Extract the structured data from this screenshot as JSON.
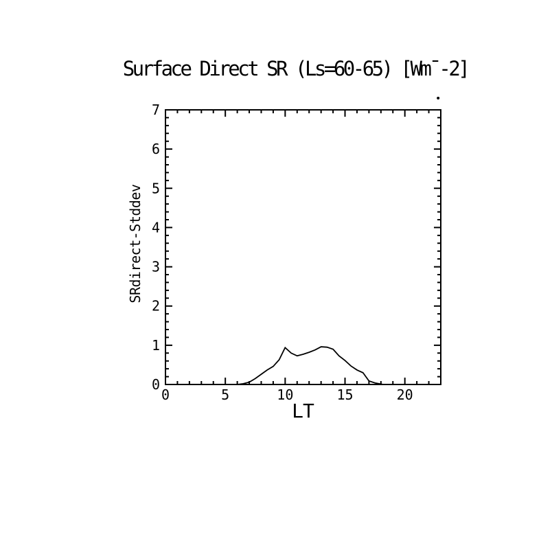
{
  "chart_data": {
    "type": "line",
    "title": "Surface Direct SR (Ls=60-65) [Wm¯-2]",
    "xlabel": "LT",
    "ylabel": "SRdirect-Stddev",
    "xlim": [
      0,
      23
    ],
    "ylim": [
      0,
      7
    ],
    "x_major_ticks": [
      0,
      5,
      10,
      15,
      20
    ],
    "x_tick_labels": [
      "0",
      "5",
      "10",
      "15",
      "20"
    ],
    "x_minor_step": 1,
    "y_major_ticks": [
      0,
      1,
      2,
      3,
      4,
      5,
      6,
      7
    ],
    "y_tick_labels": [
      "0",
      "1",
      "2",
      "3",
      "4",
      "5",
      "6",
      "7"
    ],
    "y_minor_step": 0.2,
    "grid": false,
    "legend": false,
    "background_color": "#ffffff",
    "axis_color": "#000000",
    "line_color": "#000000",
    "series": [
      {
        "name": "SRdirect-Stddev",
        "points": [
          [
            6.0,
            0.0
          ],
          [
            6.5,
            0.02
          ],
          [
            7.0,
            0.06
          ],
          [
            7.5,
            0.15
          ],
          [
            8.0,
            0.26
          ],
          [
            8.5,
            0.37
          ],
          [
            9.0,
            0.46
          ],
          [
            9.5,
            0.63
          ],
          [
            10.0,
            0.94
          ],
          [
            10.5,
            0.8
          ],
          [
            11.0,
            0.73
          ],
          [
            11.5,
            0.77
          ],
          [
            12.0,
            0.82
          ],
          [
            12.5,
            0.88
          ],
          [
            13.0,
            0.96
          ],
          [
            13.5,
            0.95
          ],
          [
            14.0,
            0.9
          ],
          [
            14.5,
            0.73
          ],
          [
            15.0,
            0.61
          ],
          [
            15.5,
            0.47
          ],
          [
            16.0,
            0.37
          ],
          [
            16.5,
            0.3
          ],
          [
            17.0,
            0.09
          ],
          [
            17.5,
            0.04
          ],
          [
            18.0,
            0.01
          ],
          [
            18.2,
            0.0
          ]
        ]
      }
    ],
    "annotations": [
      {
        "type": "stray-dot",
        "x": 22.78,
        "y": 7.3
      }
    ]
  }
}
